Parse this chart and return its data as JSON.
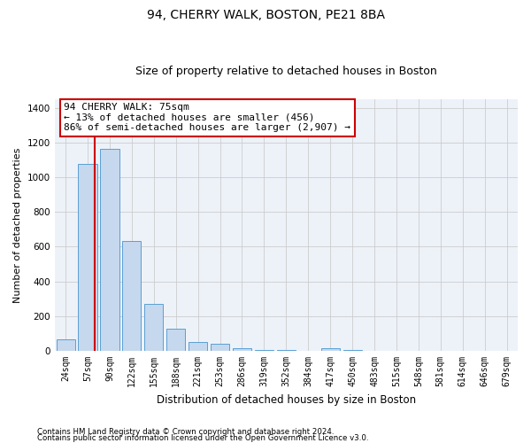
{
  "title": "94, CHERRY WALK, BOSTON, PE21 8BA",
  "subtitle": "Size of property relative to detached houses in Boston",
  "xlabel": "Distribution of detached houses by size in Boston",
  "ylabel": "Number of detached properties",
  "bar_labels": [
    "24sqm",
    "57sqm",
    "90sqm",
    "122sqm",
    "155sqm",
    "188sqm",
    "221sqm",
    "253sqm",
    "286sqm",
    "319sqm",
    "352sqm",
    "384sqm",
    "417sqm",
    "450sqm",
    "483sqm",
    "515sqm",
    "548sqm",
    "581sqm",
    "614sqm",
    "646sqm",
    "679sqm"
  ],
  "bar_values": [
    65,
    1075,
    1165,
    635,
    270,
    130,
    50,
    40,
    15,
    5,
    3,
    0,
    15,
    5,
    0,
    0,
    0,
    0,
    0,
    0,
    0
  ],
  "bar_color": "#c5d8ee",
  "bar_edge_color": "#5a9fd4",
  "vline_color": "#cc0000",
  "vline_x": 1.3,
  "annotation_text": "94 CHERRY WALK: 75sqm\n← 13% of detached houses are smaller (456)\n86% of semi-detached houses are larger (2,907) →",
  "annotation_box_color": "white",
  "annotation_box_edge": "#cc0000",
  "ylim": [
    0,
    1450
  ],
  "yticks": [
    0,
    200,
    400,
    600,
    800,
    1000,
    1200,
    1400
  ],
  "grid_color": "#cccccc",
  "bg_color": "#edf2f9",
  "footer1": "Contains HM Land Registry data © Crown copyright and database right 2024.",
  "footer2": "Contains public sector information licensed under the Open Government Licence v3.0.",
  "title_fontsize": 10,
  "subtitle_fontsize": 9,
  "tick_fontsize": 7,
  "ylabel_fontsize": 8,
  "xlabel_fontsize": 8.5,
  "annot_fontsize": 8
}
